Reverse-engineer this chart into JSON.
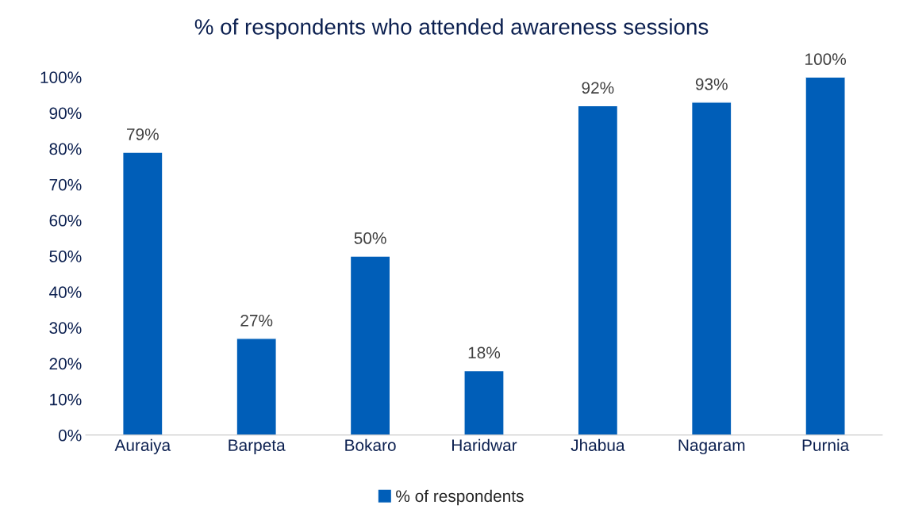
{
  "chart_data": {
    "type": "bar",
    "title": "% of respondents who attended awareness sessions",
    "categories": [
      "Auraiya",
      "Barpeta",
      "Bokaro",
      "Haridwar",
      "Jhabua",
      "Nagaram",
      "Purnia"
    ],
    "series": [
      {
        "name": "% of respondents",
        "color": "#005eb8",
        "values": [
          79,
          27,
          50,
          18,
          92,
          93,
          100
        ],
        "value_labels": [
          "79%",
          "27%",
          "50%",
          "18%",
          "92%",
          "93%",
          "100%"
        ]
      }
    ],
    "ylim": [
      0,
      100
    ],
    "yticks": [
      {
        "value": 0,
        "label": "0%"
      },
      {
        "value": 10,
        "label": "10%"
      },
      {
        "value": 20,
        "label": "20%"
      },
      {
        "value": 30,
        "label": "30%"
      },
      {
        "value": 40,
        "label": "40%"
      },
      {
        "value": 50,
        "label": "50%"
      },
      {
        "value": 60,
        "label": "60%"
      },
      {
        "value": 70,
        "label": "70%"
      },
      {
        "value": 80,
        "label": "80%"
      },
      {
        "value": 90,
        "label": "90%"
      },
      {
        "value": 100,
        "label": "100%"
      }
    ],
    "legend": "bottom"
  }
}
